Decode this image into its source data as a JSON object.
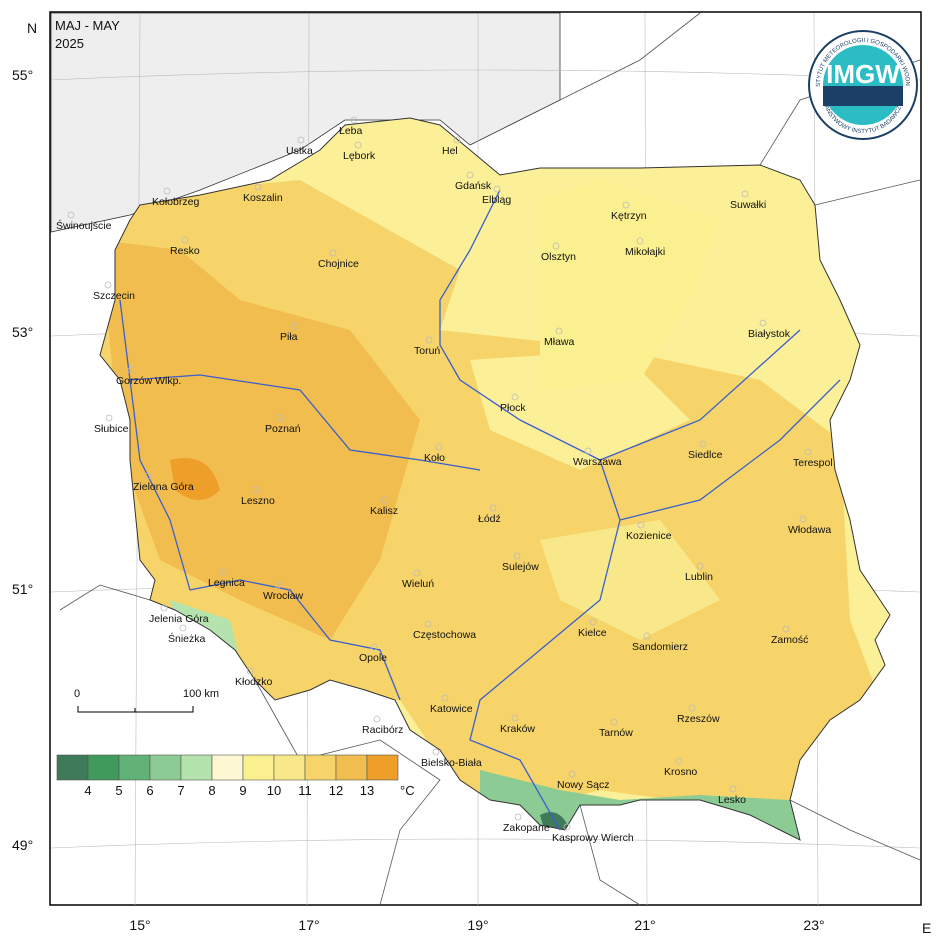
{
  "header": {
    "title": "MAJ - MAY",
    "year": "2025"
  },
  "compass": {
    "north": "N",
    "east": "E"
  },
  "latitude_labels": [
    "55°",
    "53°",
    "51°",
    "49°"
  ],
  "longitude_labels": [
    "15°",
    "17°",
    "19°",
    "21°",
    "23°"
  ],
  "scale_bar": {
    "start": "0",
    "end": "100 km"
  },
  "logo": {
    "name": "IMGW",
    "ring_top": "INSTYTUT METEOROLOGII I GOSPODARKI WODNEJ",
    "ring_bottom": "PAŃSTWOWY INSTYTUT BADAWCZY"
  },
  "legend": {
    "colors": [
      "#3f7a5a",
      "#3f9a5c",
      "#62b277",
      "#8ccc94",
      "#b4e3ae",
      "#fdf7d2",
      "#fbf08f",
      "#f9e88a",
      "#f6d46a",
      "#f2bd4f",
      "#ee9f2a"
    ],
    "labels": [
      4,
      5,
      6,
      7,
      8,
      9,
      10,
      11,
      12,
      13
    ],
    "unit": "°C"
  },
  "cities": [
    "Łeba",
    "Ustka",
    "Lębork",
    "Hel",
    "Gdańsk",
    "Elbląg",
    "Kołobrzeg",
    "Koszalin",
    "Świnoujście",
    "Kętrzyn",
    "Suwałki",
    "Resko",
    "Chojnice",
    "Olsztyn",
    "Mikołajki",
    "Szczecin",
    "Piła",
    "Toruń",
    "Mława",
    "Białystok",
    "Gorzów Wlkp.",
    "Płock",
    "Słubice",
    "Poznań",
    "Siedlce",
    "Terespol",
    "Koło",
    "Warszawa",
    "Zielona Góra",
    "Leszno",
    "Kalisz",
    "Łódź",
    "Włodawa",
    "Kozienice",
    "Sulejów",
    "Lublin",
    "Legnica",
    "Wieluń",
    "Wrocław",
    "Jelenia Góra",
    "Śnieżka",
    "Częstochowa",
    "Kielce",
    "Sandomierz",
    "Zamość",
    "Opole",
    "Kłodzko",
    "Katowice",
    "Rzeszów",
    "Kraków",
    "Tarnów",
    "Racibórz",
    "Bielsko-Biała",
    "Krosno",
    "Nowy Sącz",
    "Lesko",
    "Zakopane",
    "Kasprowy Wierch"
  ]
}
